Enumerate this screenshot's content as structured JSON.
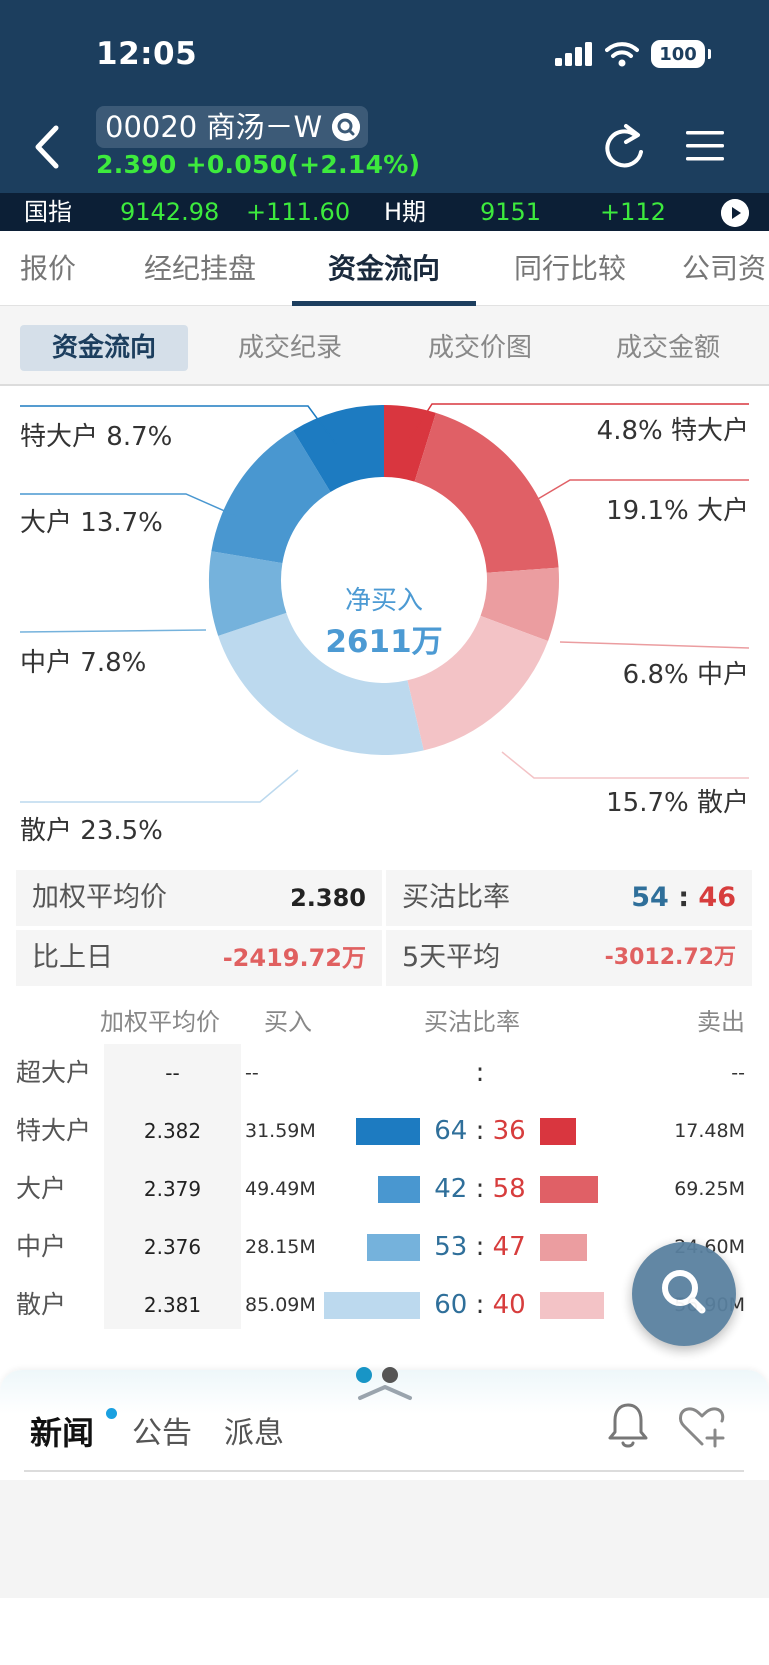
{
  "status_bar": {
    "time": "12:05",
    "battery": "100"
  },
  "header": {
    "stock_title": "00020 商汤－W",
    "price_line": "2.390 +0.050(+2.14%)"
  },
  "ticker": {
    "index_name": "国指",
    "index_value": "9142.98",
    "index_change": "+111.60",
    "futures_name": "H期",
    "futures_value": "9151",
    "futures_change": "+112"
  },
  "tabs": [
    "报价",
    "经纪挂盘",
    "资金流向",
    "同行比较",
    "公司资"
  ],
  "subtabs": [
    "资金流向",
    "成交纪录",
    "成交价图",
    "成交金额"
  ],
  "donut": {
    "center_title": "净买入",
    "center_value": "2611万",
    "buy_labels": [
      {
        "name": "特大户",
        "pct": "8.7%"
      },
      {
        "name": "大户",
        "pct": "13.7%"
      },
      {
        "name": "中户",
        "pct": "7.8%"
      },
      {
        "name": "散户",
        "pct": "23.5%"
      }
    ],
    "sell_labels": [
      {
        "name": "特大户",
        "pct": "4.8%"
      },
      {
        "name": "大户",
        "pct": "19.1%"
      },
      {
        "name": "中户",
        "pct": "6.8%"
      },
      {
        "name": "散户",
        "pct": "15.7%"
      }
    ],
    "buy_colors": [
      "#1d7bc1",
      "#4997d0",
      "#75b2dc",
      "#bcd9ee"
    ],
    "sell_colors": [
      "#d9363f",
      "#e06066",
      "#eb9da0",
      "#f3c3c6"
    ]
  },
  "stats": {
    "wavg_label": "加权平均价",
    "wavg_value": "2.380",
    "ratio_label": "买沽比率",
    "ratio_buy": "54",
    "ratio_sep": ":",
    "ratio_sell": "46",
    "prev_label": "比上日",
    "prev_value": "-2419.72万",
    "avg5_label": "5天平均",
    "avg5_value": "-3012.72万"
  },
  "table": {
    "headers": {
      "avg": "加权平均价",
      "buy": "买入",
      "ratio": "买沽比率",
      "sell": "卖出"
    },
    "rows": [
      {
        "name": "超大户",
        "avg": "--",
        "buy": "--",
        "ratio_buy": "",
        "ratio_sep": ":",
        "ratio_sell": "",
        "sell": "--",
        "buy_share": 0,
        "sell_share": 0
      },
      {
        "name": "特大户",
        "avg": "2.382",
        "buy": "31.59M",
        "ratio_buy": "64",
        "ratio_sep": ":",
        "ratio_sell": "36",
        "sell": "17.48M",
        "buy_share": 0.64,
        "sell_share": 0.36
      },
      {
        "name": "大户",
        "avg": "2.379",
        "buy": "49.49M",
        "ratio_buy": "42",
        "ratio_sep": ":",
        "ratio_sell": "58",
        "sell": "69.25M",
        "buy_share": 0.42,
        "sell_share": 0.58
      },
      {
        "name": "中户",
        "avg": "2.376",
        "buy": "28.15M",
        "ratio_buy": "53",
        "ratio_sep": ":",
        "ratio_sell": "47",
        "sell": "24.60M",
        "buy_share": 0.53,
        "sell_share": 0.47
      },
      {
        "name": "散户",
        "avg": "2.381",
        "buy": "85.09M",
        "ratio_buy": "60",
        "ratio_sep": ":",
        "ratio_sell": "40",
        "sell": "56.90M",
        "buy_share": 0.6,
        "sell_share": 0.4
      }
    ]
  },
  "news": {
    "tabs": [
      "新闻",
      "公告",
      "派息"
    ]
  }
}
